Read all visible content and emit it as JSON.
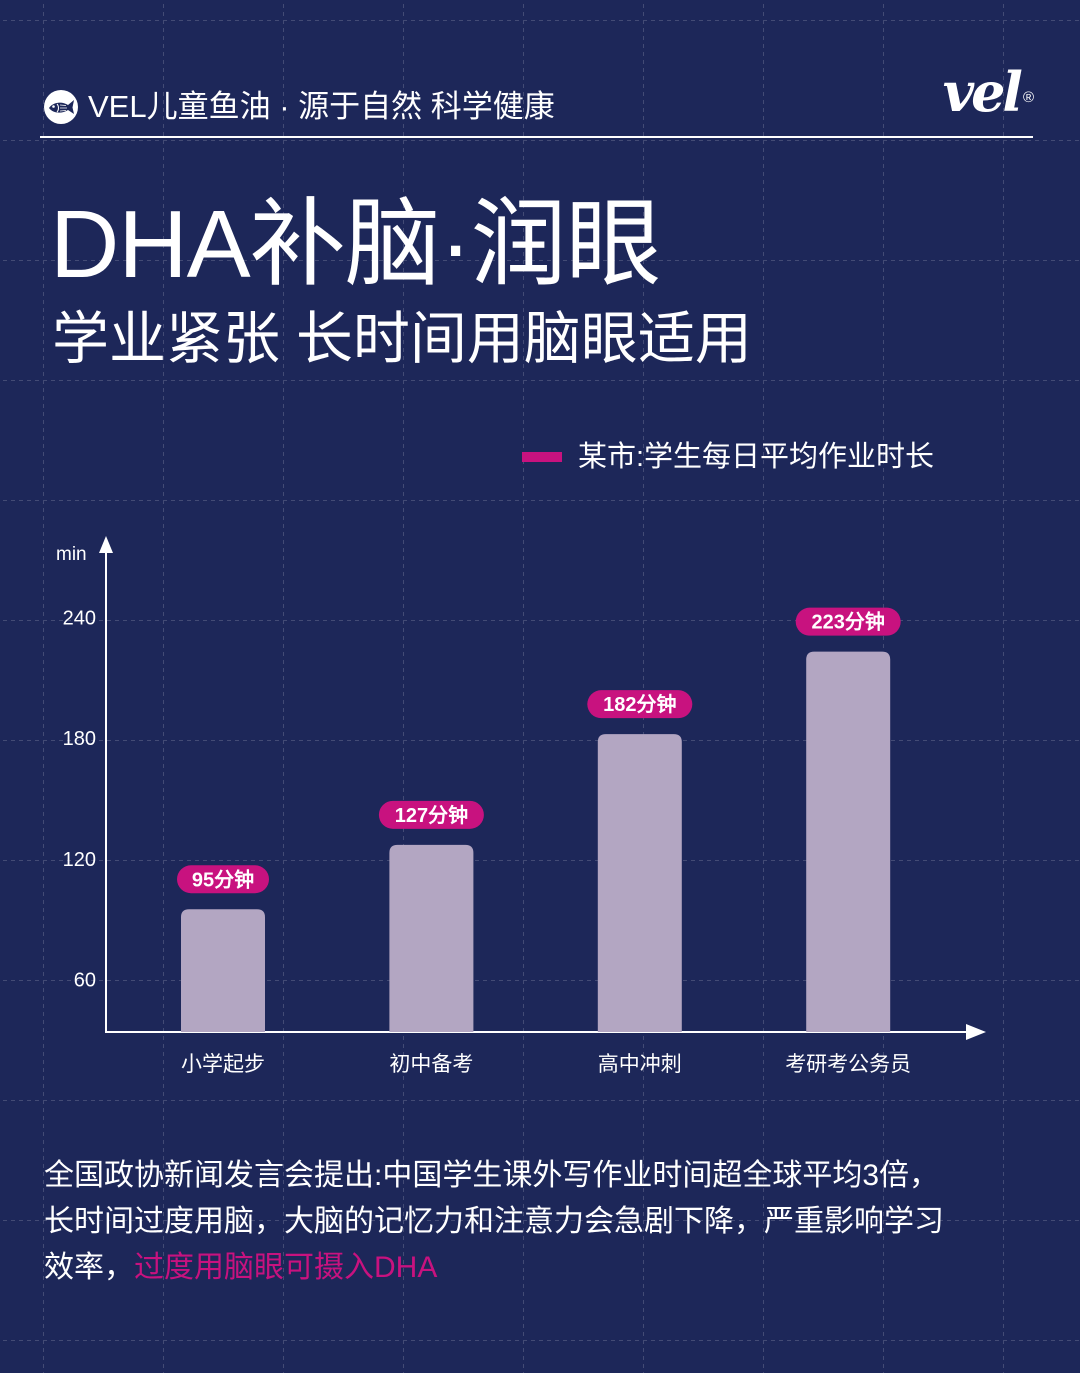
{
  "header": {
    "icon": "fish-icon",
    "brand_text": "VEL儿童鱼油 · 源于自然 科学健康",
    "logo_text": "vel",
    "logo_mark": "®"
  },
  "title": "DHA补脑·润眼",
  "subtitle": "学业紧张 长时间用脑眼适用",
  "colors": {
    "background": "#1d2759",
    "accent": "#c8127f",
    "bar": "#b3a6c2",
    "text": "#ffffff"
  },
  "chart_data": {
    "type": "bar",
    "ylabel": "min",
    "categories": [
      "小学起步",
      "初中备考",
      "高中冲刺",
      "考研考公务员"
    ],
    "series": [
      {
        "name": "某市:学生每日平均作业时长",
        "values": [
          95,
          127,
          182,
          223
        ]
      }
    ],
    "data_labels": [
      "95分钟",
      "127分钟",
      "182分钟",
      "223分钟"
    ],
    "yticks": [
      60,
      120,
      180,
      240
    ],
    "ylim": [
      34,
      278
    ],
    "grid": true,
    "legend_position": "top-right"
  },
  "footer": {
    "lines": [
      "全国政协新闻发言会提出:中国学生课外写作业时间超全球平均3倍，",
      "长时间过度用脑，大脑的记忆力和注意力会急剧下降，严重影响学习",
      "效率，"
    ],
    "highlight": "过度用脑眼可摄入DHA"
  }
}
